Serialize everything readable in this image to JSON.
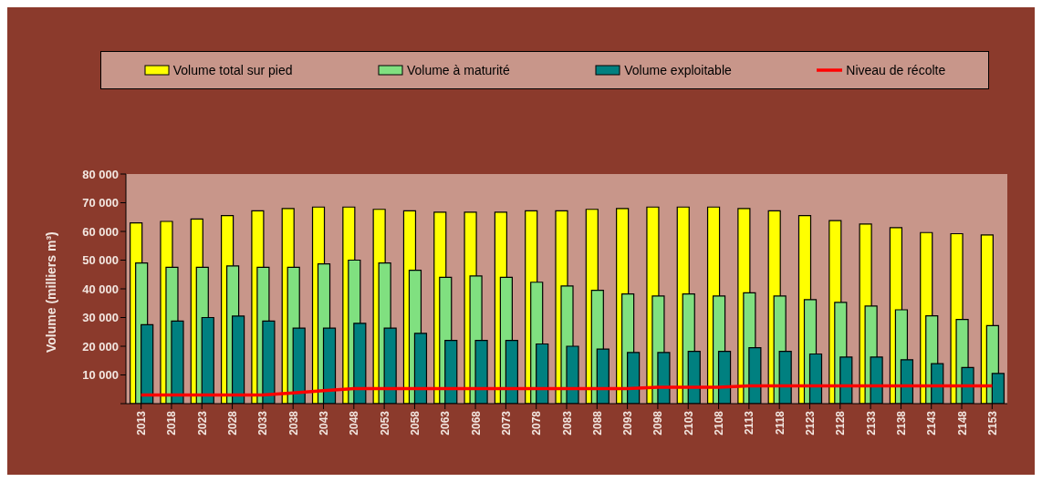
{
  "chart_data": {
    "type": "bar",
    "ylabel": "Volume (milliers m³)",
    "categories": [
      "2013",
      "2018",
      "2023",
      "2028",
      "2033",
      "2038",
      "2043",
      "2048",
      "2053",
      "2058",
      "2063",
      "2068",
      "2073",
      "2078",
      "2083",
      "2088",
      "2093",
      "2098",
      "2103",
      "2108",
      "2113",
      "2118",
      "2123",
      "2128",
      "2133",
      "2138",
      "2143",
      "2148",
      "2153"
    ],
    "series": [
      {
        "name": "Volume total sur pied",
        "color": "#ffff00",
        "values": [
          63000,
          63500,
          64300,
          65500,
          67200,
          68000,
          68500,
          68500,
          67700,
          67200,
          66700,
          66700,
          66700,
          67200,
          67200,
          67700,
          68000,
          68500,
          68500,
          68500,
          68000,
          67200,
          65500,
          63800,
          62600,
          61300,
          59600,
          59200,
          58800
        ]
      },
      {
        "name": "Volume à maturité",
        "color": "#80e080",
        "values": [
          49000,
          47500,
          47500,
          48000,
          47500,
          47500,
          48700,
          50000,
          49000,
          46500,
          44000,
          44500,
          44000,
          42300,
          41000,
          39500,
          38200,
          37500,
          38200,
          37500,
          38600,
          37500,
          36200,
          35300,
          34000,
          32700,
          30600,
          29300,
          27200
        ]
      },
      {
        "name": "Volume exploitable",
        "color": "#008080",
        "values": [
          27500,
          28800,
          30000,
          30500,
          28800,
          26300,
          26300,
          28000,
          26300,
          24500,
          22000,
          22000,
          22000,
          20800,
          20000,
          19000,
          17800,
          17800,
          18200,
          18200,
          19500,
          18200,
          17300,
          16200,
          16200,
          15300,
          13900,
          12600,
          10500
        ]
      },
      {
        "name": "Niveau de récolte",
        "type": "line",
        "color": "#ff0000",
        "values": [
          3000,
          3000,
          3000,
          3000,
          3000,
          3700,
          4500,
          5200,
          5200,
          5200,
          5200,
          5200,
          5200,
          5200,
          5200,
          5200,
          5200,
          5700,
          5700,
          5700,
          6200,
          6200,
          6200,
          6200,
          6200,
          6200,
          6200,
          6200,
          6200
        ]
      }
    ],
    "ylim": [
      0,
      80000
    ],
    "yticks": [
      {
        "value": 0,
        "label": null
      },
      {
        "value": 10000,
        "label": "10 000"
      },
      {
        "value": 20000,
        "label": "20 000"
      },
      {
        "value": 30000,
        "label": "30 000"
      },
      {
        "value": 40000,
        "label": "40 000"
      },
      {
        "value": 50000,
        "label": "50 000"
      },
      {
        "value": 60000,
        "label": "60 000"
      },
      {
        "value": 70000,
        "label": "70 000"
      },
      {
        "value": 80000,
        "label": "80 000"
      }
    ],
    "grid": false,
    "legend": "top",
    "marker": "none"
  }
}
